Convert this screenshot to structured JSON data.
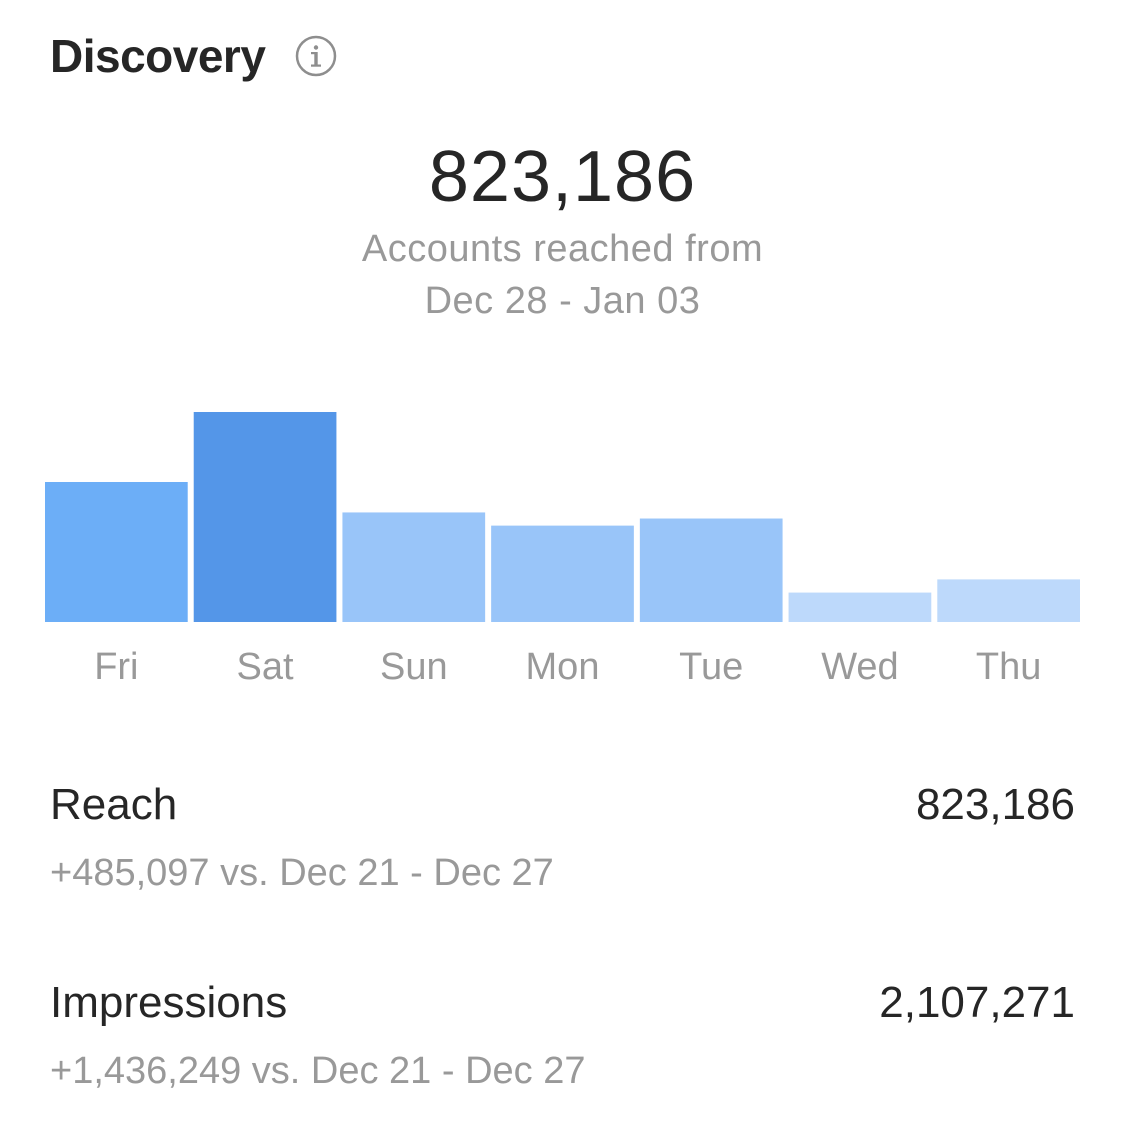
{
  "header": {
    "title": "Discovery",
    "info_icon": "info-circle-icon"
  },
  "summary": {
    "value": "823,186",
    "caption_line1": "Accounts reached from",
    "caption_line2": "Dec 28 - Jan 03"
  },
  "chart_data": {
    "type": "bar",
    "categories": [
      "Fri",
      "Sat",
      "Sun",
      "Mon",
      "Tue",
      "Wed",
      "Thu"
    ],
    "values": [
      138,
      207,
      108,
      95,
      102,
      29,
      42
    ],
    "value_note_unit": "relative",
    "highlighted_category": "Sat",
    "colors": [
      "#6caef7",
      "#5496e8",
      "#99c5f9",
      "#99c5f9",
      "#99c5f9",
      "#bdd9fb",
      "#bdd9fb"
    ],
    "title": "",
    "xlabel": "",
    "ylabel": "",
    "grid": false
  },
  "metrics": {
    "reach": {
      "label": "Reach",
      "value": "823,186",
      "change": "+485,097 vs. Dec 21 - Dec 27"
    },
    "impressions": {
      "label": "Impressions",
      "value": "2,107,271",
      "change": "+1,436,249 vs. Dec 21 - Dec 27"
    }
  }
}
